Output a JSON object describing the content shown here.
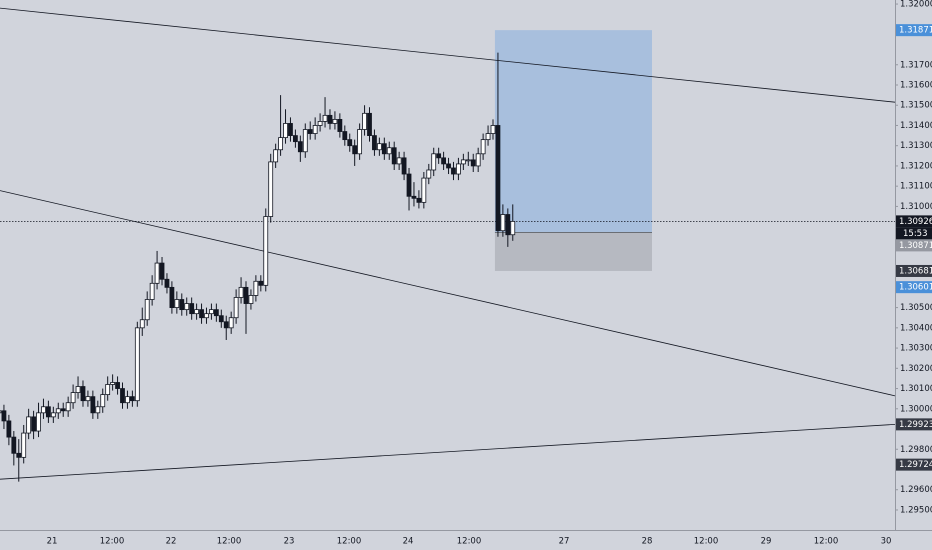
{
  "chart_data": {
    "type": "candlestick",
    "ylim": [
      1.29401,
      1.3202
    ],
    "yticks": [
      {
        "value": 1.32,
        "label": "1.32000"
      },
      {
        "value": 1.317,
        "label": "1.31700"
      },
      {
        "value": 1.316,
        "label": "1.31600"
      },
      {
        "value": 1.315,
        "label": "1.31500"
      },
      {
        "value": 1.314,
        "label": "1.31400"
      },
      {
        "value": 1.313,
        "label": "1.31300"
      },
      {
        "value": 1.312,
        "label": "1.31200"
      },
      {
        "value": 1.311,
        "label": "1.31100"
      },
      {
        "value": 1.31,
        "label": "1.31000"
      },
      {
        "value": 1.305,
        "label": "1.30500"
      },
      {
        "value": 1.304,
        "label": "1.30400"
      },
      {
        "value": 1.303,
        "label": "1.30300"
      },
      {
        "value": 1.302,
        "label": "1.30200"
      },
      {
        "value": 1.301,
        "label": "1.30100"
      },
      {
        "value": 1.3,
        "label": "1.30000"
      },
      {
        "value": 1.298,
        "label": "1.29800"
      },
      {
        "value": 1.296,
        "label": "1.29600"
      },
      {
        "value": 1.295,
        "label": "1.29500"
      }
    ],
    "x_labels": [
      "21",
      "12:00",
      "22",
      "12:00",
      "23",
      "12:00",
      "24",
      "12:00",
      "27",
      "28",
      "12:00",
      "29",
      "12:00",
      "30"
    ],
    "candles": [
      [
        1.2998,
        1.3002,
        1.2993,
        1.2999
      ],
      [
        1.2999,
        1.3002,
        1.299,
        1.2994
      ],
      [
        1.2994,
        1.2997,
        1.2982,
        1.2986
      ],
      [
        1.2986,
        1.2989,
        1.2972,
        1.2978
      ],
      [
        1.2978,
        1.2985,
        1.2964,
        1.2976
      ],
      [
        1.2976,
        1.2992,
        1.2973,
        1.2988
      ],
      [
        1.2988,
        1.3,
        1.2985,
        1.2996
      ],
      [
        1.2996,
        1.2999,
        1.2985,
        1.2989
      ],
      [
        1.2989,
        1.3003,
        1.2986,
        1.2998
      ],
      [
        1.2998,
        1.3005,
        1.2995,
        1.3001
      ],
      [
        1.3001,
        1.3004,
        1.2993,
        1.2996
      ],
      [
        1.2996,
        1.3001,
        1.2993,
        1.2998
      ],
      [
        1.2998,
        1.3003,
        1.2995,
        1.3
      ],
      [
        1.3,
        1.3003,
        1.2996,
        1.2999
      ],
      [
        1.2999,
        1.3006,
        1.2996,
        1.3003
      ],
      [
        1.3003,
        1.3012,
        1.3,
        1.3008
      ],
      [
        1.3008,
        1.3016,
        1.3005,
        1.3011
      ],
      [
        1.3011,
        1.3014,
        1.3001,
        1.3004
      ],
      [
        1.3004,
        1.3009,
        1.3001,
        1.3006
      ],
      [
        1.3006,
        1.3009,
        1.2995,
        1.2998
      ],
      [
        1.2998,
        1.3004,
        1.2995,
        1.3001
      ],
      [
        1.3001,
        1.301,
        1.2998,
        1.3007
      ],
      [
        1.3007,
        1.3016,
        1.3004,
        1.3012
      ],
      [
        1.3012,
        1.3017,
        1.3009,
        1.3013
      ],
      [
        1.3013,
        1.3016,
        1.3007,
        1.301
      ],
      [
        1.301,
        1.3013,
        1.3,
        1.3003
      ],
      [
        1.3003,
        1.3009,
        1.3,
        1.3006
      ],
      [
        1.3006,
        1.3009,
        1.3001,
        1.3004
      ],
      [
        1.3004,
        1.3043,
        1.3001,
        1.304
      ],
      [
        1.304,
        1.305,
        1.3036,
        1.3044
      ],
      [
        1.3044,
        1.3058,
        1.3041,
        1.3054
      ],
      [
        1.3054,
        1.3066,
        1.3051,
        1.3062
      ],
      [
        1.3062,
        1.3078,
        1.3059,
        1.3072
      ],
      [
        1.3072,
        1.3075,
        1.3061,
        1.3064
      ],
      [
        1.3064,
        1.3067,
        1.3057,
        1.306
      ],
      [
        1.306,
        1.3063,
        1.3047,
        1.305
      ],
      [
        1.305,
        1.3058,
        1.3047,
        1.3054
      ],
      [
        1.3054,
        1.3057,
        1.3046,
        1.3049
      ],
      [
        1.3049,
        1.3055,
        1.3046,
        1.3052
      ],
      [
        1.3052,
        1.3055,
        1.3044,
        1.3047
      ],
      [
        1.3047,
        1.3052,
        1.3044,
        1.3049
      ],
      [
        1.3049,
        1.3052,
        1.3042,
        1.3045
      ],
      [
        1.3045,
        1.305,
        1.3042,
        1.3047
      ],
      [
        1.3047,
        1.3052,
        1.3044,
        1.3049
      ],
      [
        1.3049,
        1.3052,
        1.3043,
        1.3046
      ],
      [
        1.3046,
        1.3049,
        1.304,
        1.3043
      ],
      [
        1.3043,
        1.3046,
        1.3034,
        1.304
      ],
      [
        1.304,
        1.3048,
        1.3037,
        1.3045
      ],
      [
        1.3045,
        1.3059,
        1.3042,
        1.3055
      ],
      [
        1.3055,
        1.3065,
        1.3052,
        1.306
      ],
      [
        1.306,
        1.3063,
        1.3037,
        1.3052
      ],
      [
        1.3052,
        1.3059,
        1.3049,
        1.3056
      ],
      [
        1.3056,
        1.3066,
        1.3053,
        1.3063
      ],
      [
        1.3063,
        1.3066,
        1.3058,
        1.3061
      ],
      [
        1.3061,
        1.3099,
        1.3058,
        1.3095
      ],
      [
        1.3095,
        1.3126,
        1.3092,
        1.3122
      ],
      [
        1.3122,
        1.3131,
        1.3119,
        1.3128
      ],
      [
        1.3128,
        1.3155,
        1.3125,
        1.3134
      ],
      [
        1.3134,
        1.3148,
        1.3131,
        1.3141
      ],
      [
        1.3141,
        1.3144,
        1.3132,
        1.3135
      ],
      [
        1.3135,
        1.3138,
        1.3129,
        1.3132
      ],
      [
        1.3132,
        1.3135,
        1.3122,
        1.3127
      ],
      [
        1.3127,
        1.3141,
        1.3124,
        1.3138
      ],
      [
        1.3138,
        1.3142,
        1.3133,
        1.3136
      ],
      [
        1.3136,
        1.3144,
        1.3133,
        1.314
      ],
      [
        1.314,
        1.3146,
        1.3137,
        1.3142
      ],
      [
        1.3142,
        1.3154,
        1.3139,
        1.3145
      ],
      [
        1.3145,
        1.3148,
        1.3138,
        1.3141
      ],
      [
        1.3141,
        1.3147,
        1.3138,
        1.3143
      ],
      [
        1.3143,
        1.3146,
        1.3134,
        1.3137
      ],
      [
        1.3137,
        1.314,
        1.313,
        1.3133
      ],
      [
        1.3133,
        1.3136,
        1.3127,
        1.313
      ],
      [
        1.313,
        1.3133,
        1.312,
        1.3126
      ],
      [
        1.3126,
        1.3141,
        1.3123,
        1.3138
      ],
      [
        1.3138,
        1.315,
        1.3135,
        1.3146
      ],
      [
        1.3146,
        1.3149,
        1.3132,
        1.3135
      ],
      [
        1.3135,
        1.3138,
        1.3125,
        1.3128
      ],
      [
        1.3128,
        1.3134,
        1.3125,
        1.3131
      ],
      [
        1.3131,
        1.3134,
        1.3123,
        1.3126
      ],
      [
        1.3126,
        1.3132,
        1.3123,
        1.3129
      ],
      [
        1.3129,
        1.3132,
        1.3118,
        1.3121
      ],
      [
        1.3121,
        1.3127,
        1.3118,
        1.3124
      ],
      [
        1.3124,
        1.3127,
        1.3113,
        1.3116
      ],
      [
        1.3116,
        1.3119,
        1.3098,
        1.3105
      ],
      [
        1.3105,
        1.3112,
        1.31,
        1.3104
      ],
      [
        1.3104,
        1.3108,
        1.3099,
        1.3102
      ],
      [
        1.3102,
        1.3117,
        1.3099,
        1.3114
      ],
      [
        1.3114,
        1.3121,
        1.3111,
        1.3118
      ],
      [
        1.3118,
        1.3129,
        1.3115,
        1.3126
      ],
      [
        1.3126,
        1.3129,
        1.3121,
        1.3124
      ],
      [
        1.3124,
        1.3127,
        1.3118,
        1.3121
      ],
      [
        1.3121,
        1.3124,
        1.3116,
        1.3119
      ],
      [
        1.3119,
        1.3122,
        1.3113,
        1.3116
      ],
      [
        1.3116,
        1.3124,
        1.3113,
        1.3121
      ],
      [
        1.3121,
        1.3126,
        1.3118,
        1.3123
      ],
      [
        1.3123,
        1.3127,
        1.312,
        1.3123
      ],
      [
        1.3123,
        1.3126,
        1.3117,
        1.312
      ],
      [
        1.312,
        1.3129,
        1.3117,
        1.3126
      ],
      [
        1.3126,
        1.3136,
        1.3123,
        1.3133
      ],
      [
        1.3133,
        1.314,
        1.313,
        1.3136
      ],
      [
        1.3136,
        1.3143,
        1.3133,
        1.314
      ],
      [
        1.314,
        1.3176,
        1.3085,
        1.3088
      ],
      [
        1.3088,
        1.3101,
        1.3085,
        1.3096
      ],
      [
        1.3096,
        1.3099,
        1.308,
        1.3086
      ],
      [
        1.3086,
        1.3101,
        1.3083,
        1.30926
      ]
    ],
    "trendlines": [
      {
        "start": 1.3198,
        "end": 1.31515
      },
      {
        "start": 1.31078,
        "end": 1.30064
      },
      {
        "start": 1.29652,
        "end": 1.29923
      }
    ],
    "position_tool": {
      "target": 1.31871,
      "entry": 1.30871,
      "stop": 1.30681
    },
    "current_price": 1.30926,
    "countdown": "15:53",
    "price_badges": [
      {
        "value": 1.31871,
        "color": "#4a90d9"
      },
      {
        "value": 1.30871,
        "color": "#9598a1"
      },
      {
        "value": 1.30681,
        "color": "#363a45"
      },
      {
        "value": 1.30601,
        "color": "#4a90d9"
      },
      {
        "value": 1.29923,
        "color": "#363a45"
      },
      {
        "value": 1.29724,
        "color": "#363a45"
      }
    ]
  }
}
